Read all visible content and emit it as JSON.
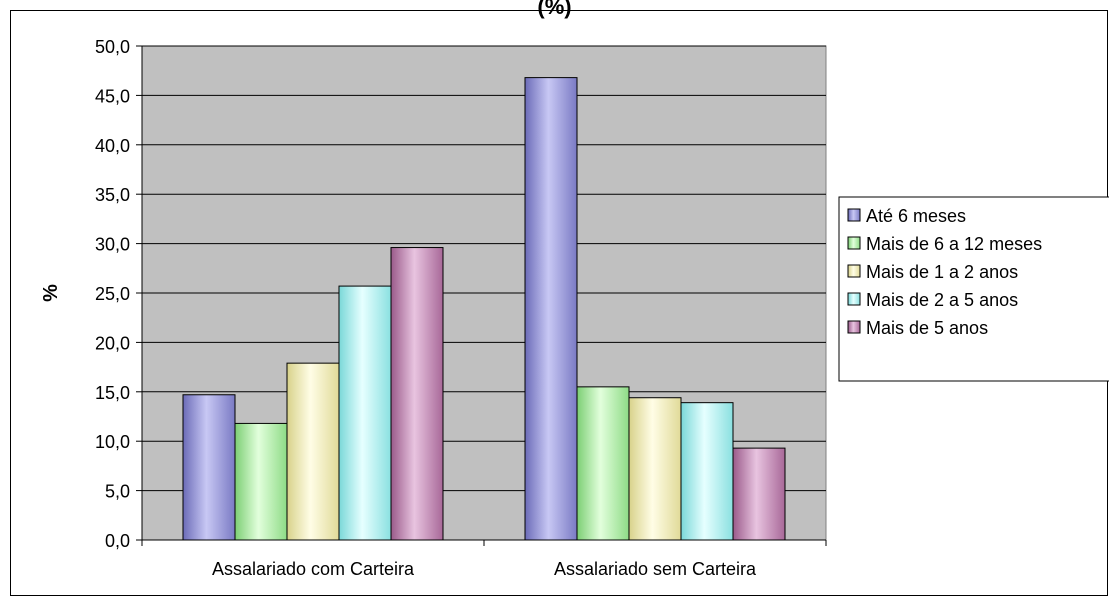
{
  "chart_data": {
    "type": "bar",
    "title": "(%)",
    "ylabel": "%",
    "xlabel": "",
    "ylim": [
      0,
      50
    ],
    "yticks": [
      "0,0",
      "5,0",
      "10,0",
      "15,0",
      "20,0",
      "25,0",
      "30,0",
      "35,0",
      "40,0",
      "45,0",
      "50,0"
    ],
    "categories": [
      "Assalariado com Carteira",
      "Assalariado sem Carteira"
    ],
    "series": [
      {
        "name": "Até 6 meses",
        "values": [
          14.7,
          46.8
        ],
        "color": "#9999dd"
      },
      {
        "name": "Mais de 6 a 12 meses",
        "values": [
          11.8,
          15.5
        ],
        "color": "#b8f0b0"
      },
      {
        "name": "Mais de 1 a 2 anos",
        "values": [
          17.9,
          14.4
        ],
        "color": "#f4f0b8"
      },
      {
        "name": "Mais de 2 a 5 anos",
        "values": [
          25.7,
          13.9
        ],
        "color": "#b8f4f4"
      },
      {
        "name": "Mais de 5 anos",
        "values": [
          29.6,
          9.3
        ],
        "color": "#c890b8"
      }
    ],
    "grid": true,
    "legend_position": "right",
    "plot_background": "#c0c0c0"
  }
}
